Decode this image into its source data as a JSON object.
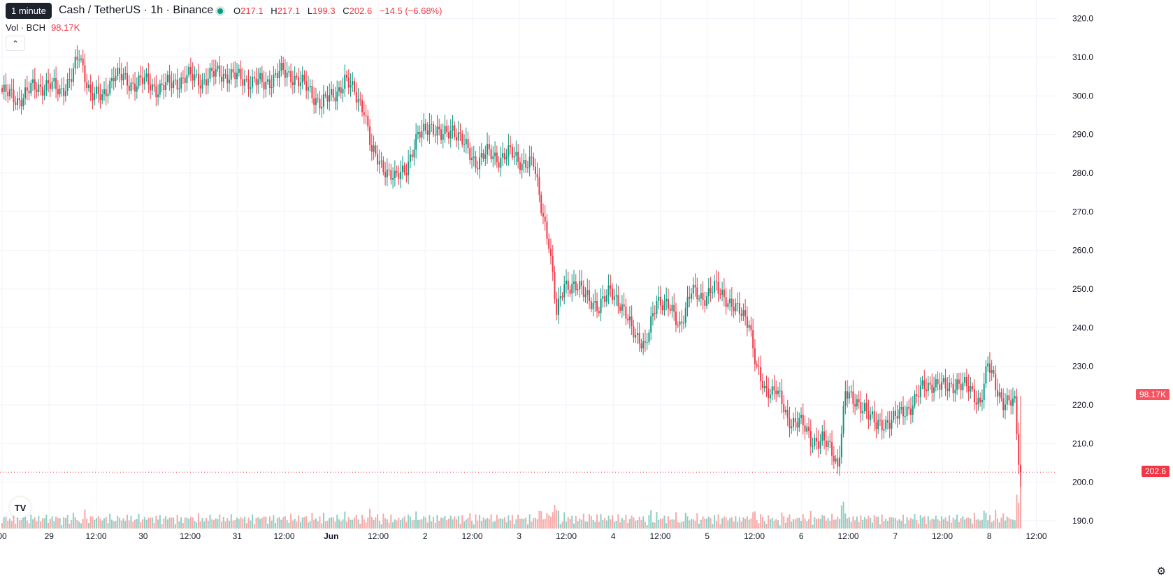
{
  "legend": {
    "tooltip": "1 minute",
    "symbol_title": "Cash / TetherUS · 1h · Binance",
    "open_label": "O",
    "open": "217.1",
    "high_label": "H",
    "high": "217.1",
    "low_label": "L",
    "low": "199.3",
    "close_label": "C",
    "close": "202.6",
    "change": "−14.5 (−6.68%)",
    "vol_label": "Vol · BCH",
    "vol_value": "98.17K"
  },
  "badges": {
    "volume": "98.17K",
    "last_price": "202.6"
  },
  "colors": {
    "up": "#089981",
    "down": "#f23645",
    "up_vol": "#8ecfc4",
    "down_vol": "#f7a9a7",
    "grid": "#f0f3fa"
  },
  "icons": {
    "collapse": "chevron-up-icon",
    "logo": "tradingview-logo",
    "settings": "gear-icon"
  },
  "chart_data": {
    "type": "candlestick",
    "title": "Cash / TetherUS · 1h · Binance",
    "y_ticks": [
      "190.0",
      "200.0",
      "210.0",
      "220.0",
      "230.0",
      "240.0",
      "250.0",
      "260.0",
      "270.0",
      "280.0",
      "290.0",
      "300.0",
      "310.0",
      "320.0"
    ],
    "ylim": [
      188,
      323
    ],
    "x_ticks": [
      "00",
      "29",
      "12:00",
      "30",
      "12:00",
      "31",
      "12:00",
      "Jun",
      "12:00",
      "2",
      "12:00",
      "3",
      "12:00",
      "4",
      "12:00",
      "5",
      "12:00",
      "6",
      "12:00",
      "7",
      "12:00",
      "8",
      "12:00"
    ],
    "price_anchors": [
      [
        0,
        301
      ],
      [
        8,
        299
      ],
      [
        16,
        302
      ],
      [
        24,
        303
      ],
      [
        30,
        301
      ],
      [
        36,
        305
      ],
      [
        40,
        310
      ],
      [
        46,
        301
      ],
      [
        52,
        299
      ],
      [
        58,
        306
      ],
      [
        66,
        303
      ],
      [
        72,
        304
      ],
      [
        80,
        302
      ],
      [
        88,
        303
      ],
      [
        96,
        305
      ],
      [
        104,
        304
      ],
      [
        112,
        306
      ],
      [
        120,
        305
      ],
      [
        128,
        304
      ],
      [
        136,
        303
      ],
      [
        144,
        306
      ],
      [
        152,
        305
      ],
      [
        160,
        301
      ],
      [
        166,
        298
      ],
      [
        172,
        300
      ],
      [
        178,
        304
      ],
      [
        184,
        300
      ],
      [
        188,
        297
      ],
      [
        192,
        285
      ],
      [
        198,
        282
      ],
      [
        204,
        278
      ],
      [
        210,
        282
      ],
      [
        216,
        289
      ],
      [
        222,
        293
      ],
      [
        228,
        289
      ],
      [
        234,
        292
      ],
      [
        240,
        287
      ],
      [
        246,
        283
      ],
      [
        252,
        285
      ],
      [
        258,
        284
      ],
      [
        264,
        285
      ],
      [
        270,
        283
      ],
      [
        276,
        282
      ],
      [
        280,
        272
      ],
      [
        284,
        262
      ],
      [
        288,
        243
      ],
      [
        292,
        252
      ],
      [
        298,
        250
      ],
      [
        304,
        249
      ],
      [
        310,
        244
      ],
      [
        316,
        251
      ],
      [
        322,
        244
      ],
      [
        328,
        240
      ],
      [
        334,
        234
      ],
      [
        340,
        248
      ],
      [
        346,
        245
      ],
      [
        352,
        241
      ],
      [
        358,
        249
      ],
      [
        364,
        248
      ],
      [
        370,
        250
      ],
      [
        376,
        248
      ],
      [
        382,
        244
      ],
      [
        388,
        242
      ],
      [
        392,
        229
      ],
      [
        396,
        223
      ],
      [
        402,
        225
      ],
      [
        408,
        215
      ],
      [
        414,
        217
      ],
      [
        420,
        210
      ],
      [
        426,
        212
      ],
      [
        430,
        208
      ],
      [
        434,
        204
      ],
      [
        438,
        224
      ],
      [
        442,
        220
      ],
      [
        448,
        220
      ],
      [
        454,
        214
      ],
      [
        460,
        216
      ],
      [
        466,
        217
      ],
      [
        472,
        220
      ],
      [
        478,
        224
      ],
      [
        484,
        226
      ],
      [
        490,
        224
      ],
      [
        496,
        226
      ],
      [
        502,
        224
      ],
      [
        508,
        221
      ],
      [
        512,
        230
      ],
      [
        516,
        225
      ],
      [
        520,
        221
      ],
      [
        526,
        220
      ],
      [
        528,
        206
      ],
      [
        529,
        202.6
      ]
    ],
    "last_close": 202.6,
    "volume_last": "98.17K"
  }
}
